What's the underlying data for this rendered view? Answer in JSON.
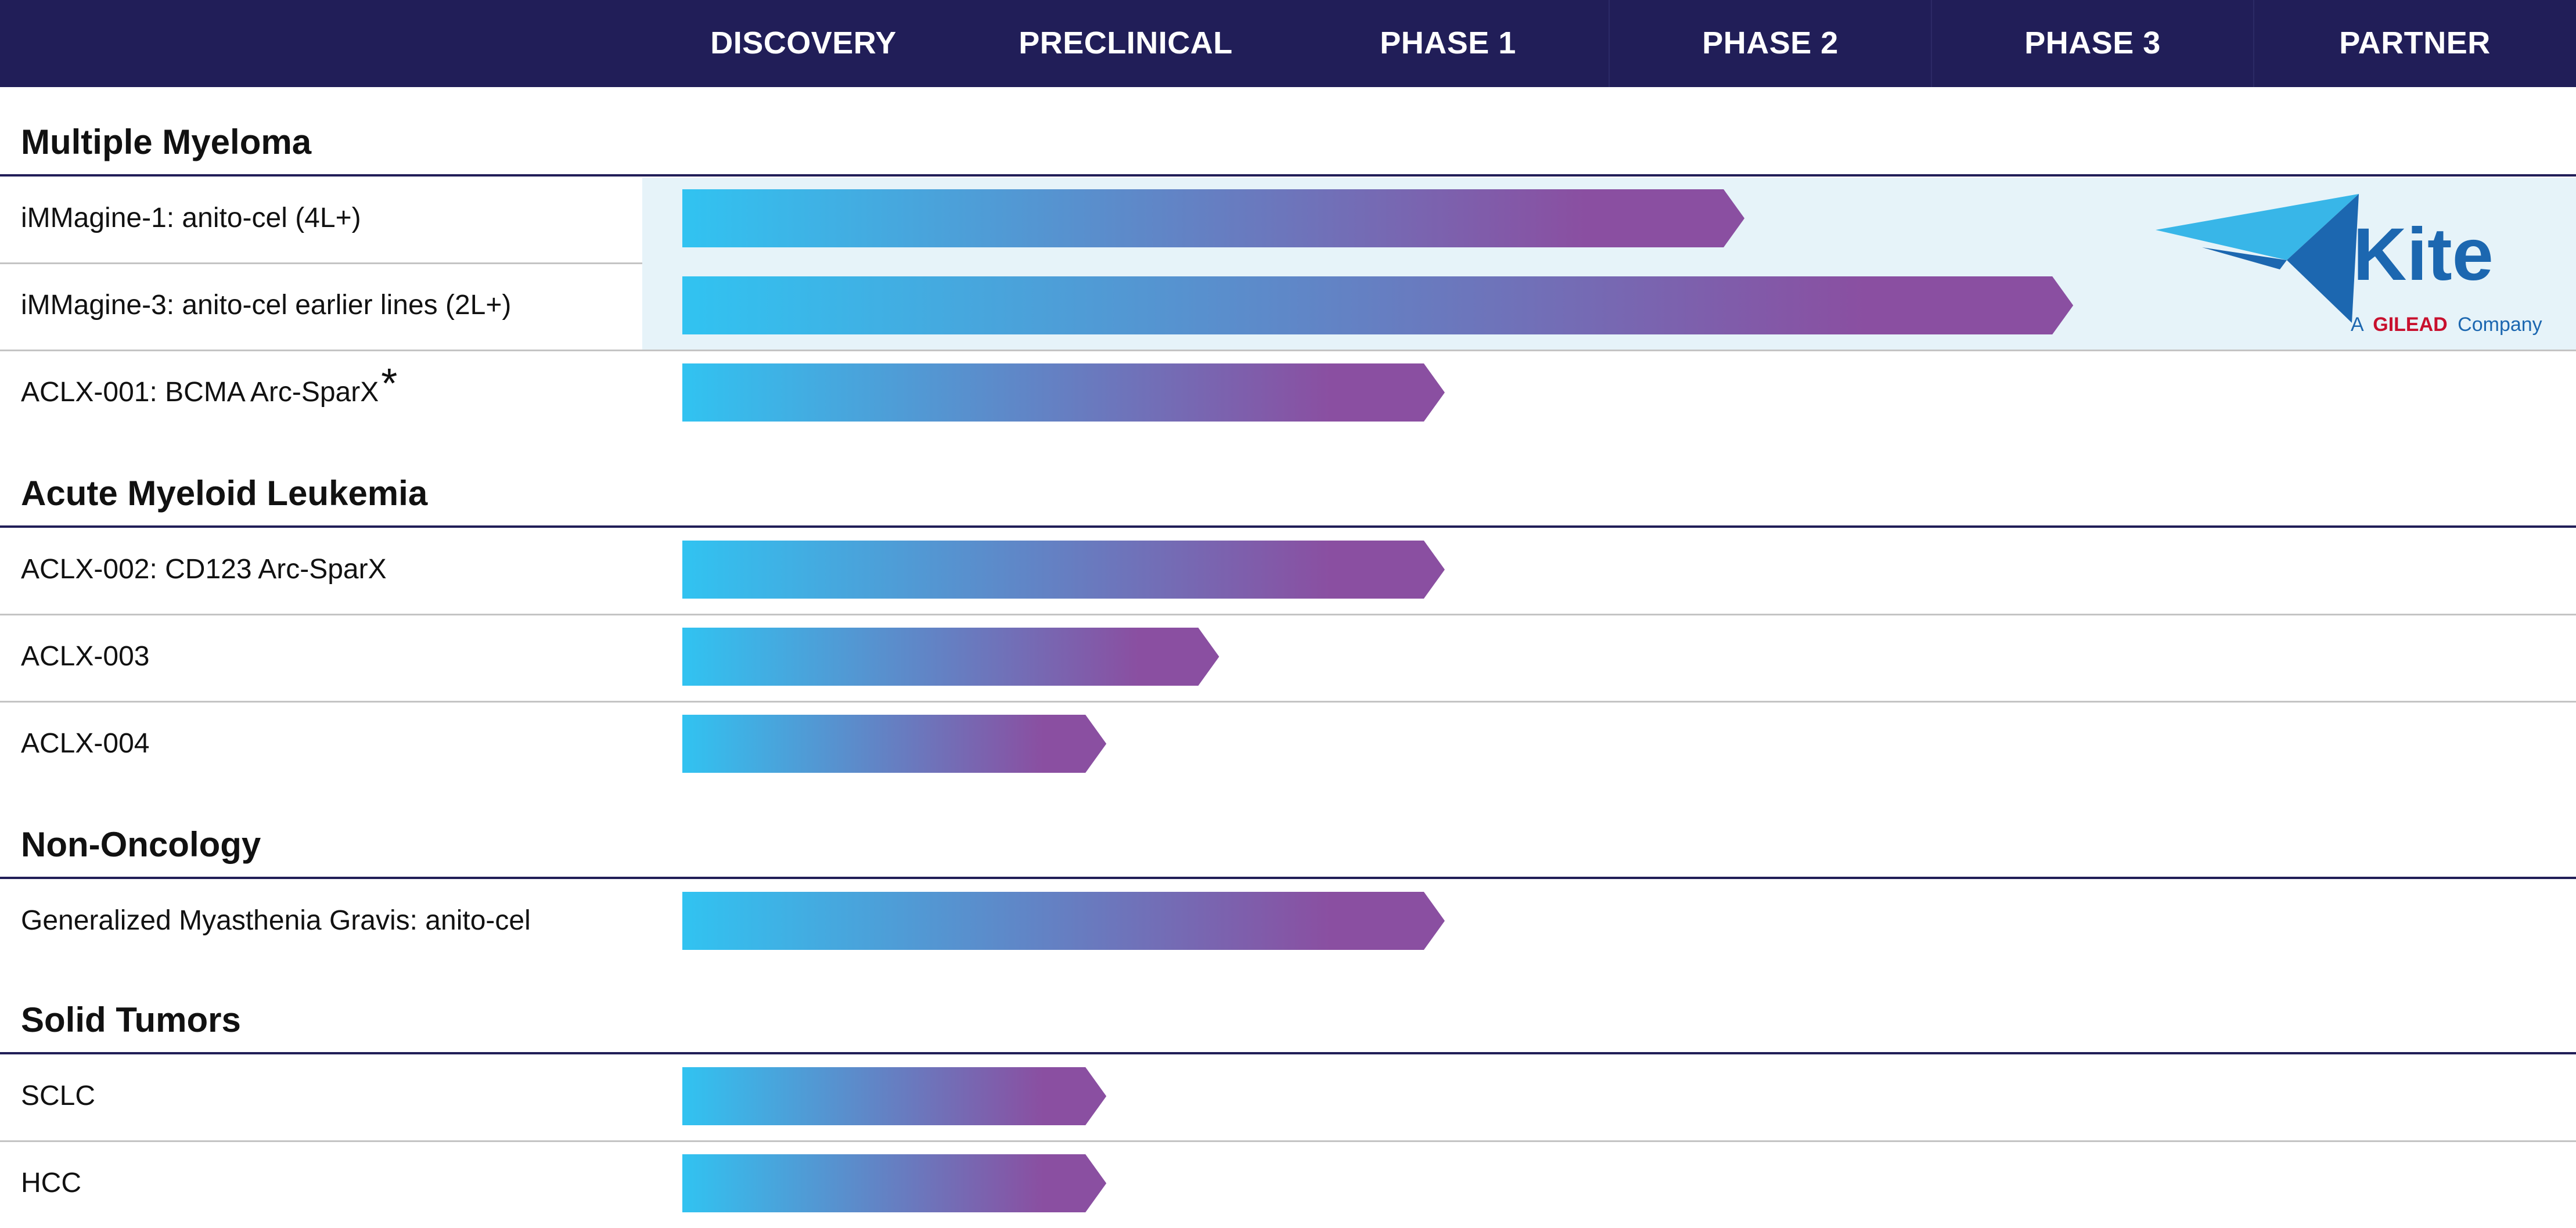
{
  "header": {
    "phases": [
      "DISCOVERY",
      "PRECLINICAL",
      "PHASE 1",
      "PHASE 2",
      "PHASE 3",
      "PARTNER"
    ]
  },
  "partner_logo": {
    "name": "Kite",
    "tagline_prefix": "A",
    "tagline_brand": "GILEAD",
    "tagline_suffix": "Company",
    "colors": {
      "kite_blue": "#1c67b0",
      "kite_light": "#38b6e8",
      "gilead_red": "#c8102e"
    }
  },
  "colors": {
    "header_bg": "#211e58",
    "bar_start": "#31c3f1",
    "bar_end": "#8a4fa1",
    "partner_band": "#e6f3f9"
  },
  "chart_data": {
    "type": "bar",
    "orientation": "horizontal",
    "value_unit": "development stage reached (stage index, 0 = Discovery start, 5 = Partner column)",
    "stages": [
      "DISCOVERY",
      "PRECLINICAL",
      "PHASE 1",
      "PHASE 2",
      "PHASE 3",
      "PARTNER"
    ],
    "sections": [
      {
        "title": "Multiple Myeloma",
        "programs": [
          {
            "label": "iMMagine-1: anito-cel (4L+)",
            "marker": "",
            "value": 3.42,
            "partnered": true
          },
          {
            "label": "iMMagine-3: anito-cel earlier lines (2L+)",
            "marker": "",
            "value": 4.44,
            "partnered": true
          },
          {
            "label": "ACLX-001: BCMA Arc-SparX",
            "marker": "*",
            "value": 2.49,
            "partnered": false
          }
        ]
      },
      {
        "title": "Acute Myeloid Leukemia",
        "programs": [
          {
            "label": "ACLX-002: CD123 Arc-SparX",
            "marker": "",
            "value": 2.49,
            "partnered": false
          },
          {
            "label": "ACLX-003",
            "marker": "",
            "value": 1.79,
            "partnered": false
          },
          {
            "label": "ACLX-004",
            "marker": "",
            "value": 1.44,
            "partnered": false
          }
        ]
      },
      {
        "title": "Non-Oncology",
        "programs": [
          {
            "label": "Generalized Myasthenia Gravis: anito-cel",
            "marker": "",
            "value": 2.49,
            "partnered": false
          }
        ]
      },
      {
        "title": "Solid Tumors",
        "programs": [
          {
            "label": "SCLC",
            "marker": "",
            "value": 1.44,
            "partnered": false
          },
          {
            "label": "HCC",
            "marker": "",
            "value": 1.44,
            "partnered": false
          }
        ]
      }
    ]
  }
}
